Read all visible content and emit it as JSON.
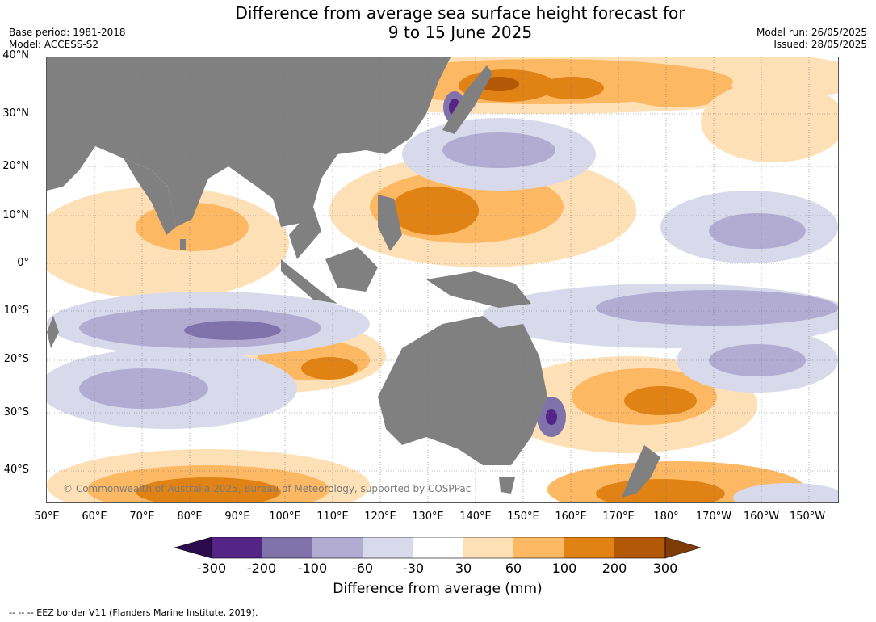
{
  "title_line1": "Difference from average sea surface height forecast for",
  "title_line2": "9 to 15 June 2025",
  "base_period": "Base period: 1981-2018",
  "model": "Model: ACCESS-S2",
  "model_run": "Model run: 26/05/2025",
  "issued": "Issued: 28/05/2025",
  "lat_labels": [
    "40°N",
    "30°N",
    "20°N",
    "10°N",
    "0°",
    "10°S",
    "20°S",
    "30°S",
    "40°S"
  ],
  "lon_labels": [
    "50°E",
    "60°E",
    "70°E",
    "80°E",
    "90°E",
    "100°E",
    "110°E",
    "120°E",
    "130°E",
    "140°E",
    "150°E",
    "160°E",
    "170°E",
    "180°",
    "170°W",
    "160°W",
    "150°W"
  ],
  "colorbar": {
    "ticks": [
      "-300",
      "-200",
      "-100",
      "-60",
      "-30",
      "30",
      "60",
      "100",
      "200",
      "300"
    ],
    "colors": [
      "#2d0a4e",
      "#542586",
      "#8073ac",
      "#b2abd2",
      "#d8daeb",
      "#ffffff",
      "#fee0b6",
      "#fdb863",
      "#e08214",
      "#b35806",
      "#7f3b08"
    ],
    "title": "Difference from average (mm)"
  },
  "land_color": "#808080",
  "copyright": "© Commonwealth of Australia 2025, Bureau of Meteorology, supported by COSPPac",
  "footnote": "--  --  -- EEZ border V11 (Flanders Marine Institute, 2019)."
}
